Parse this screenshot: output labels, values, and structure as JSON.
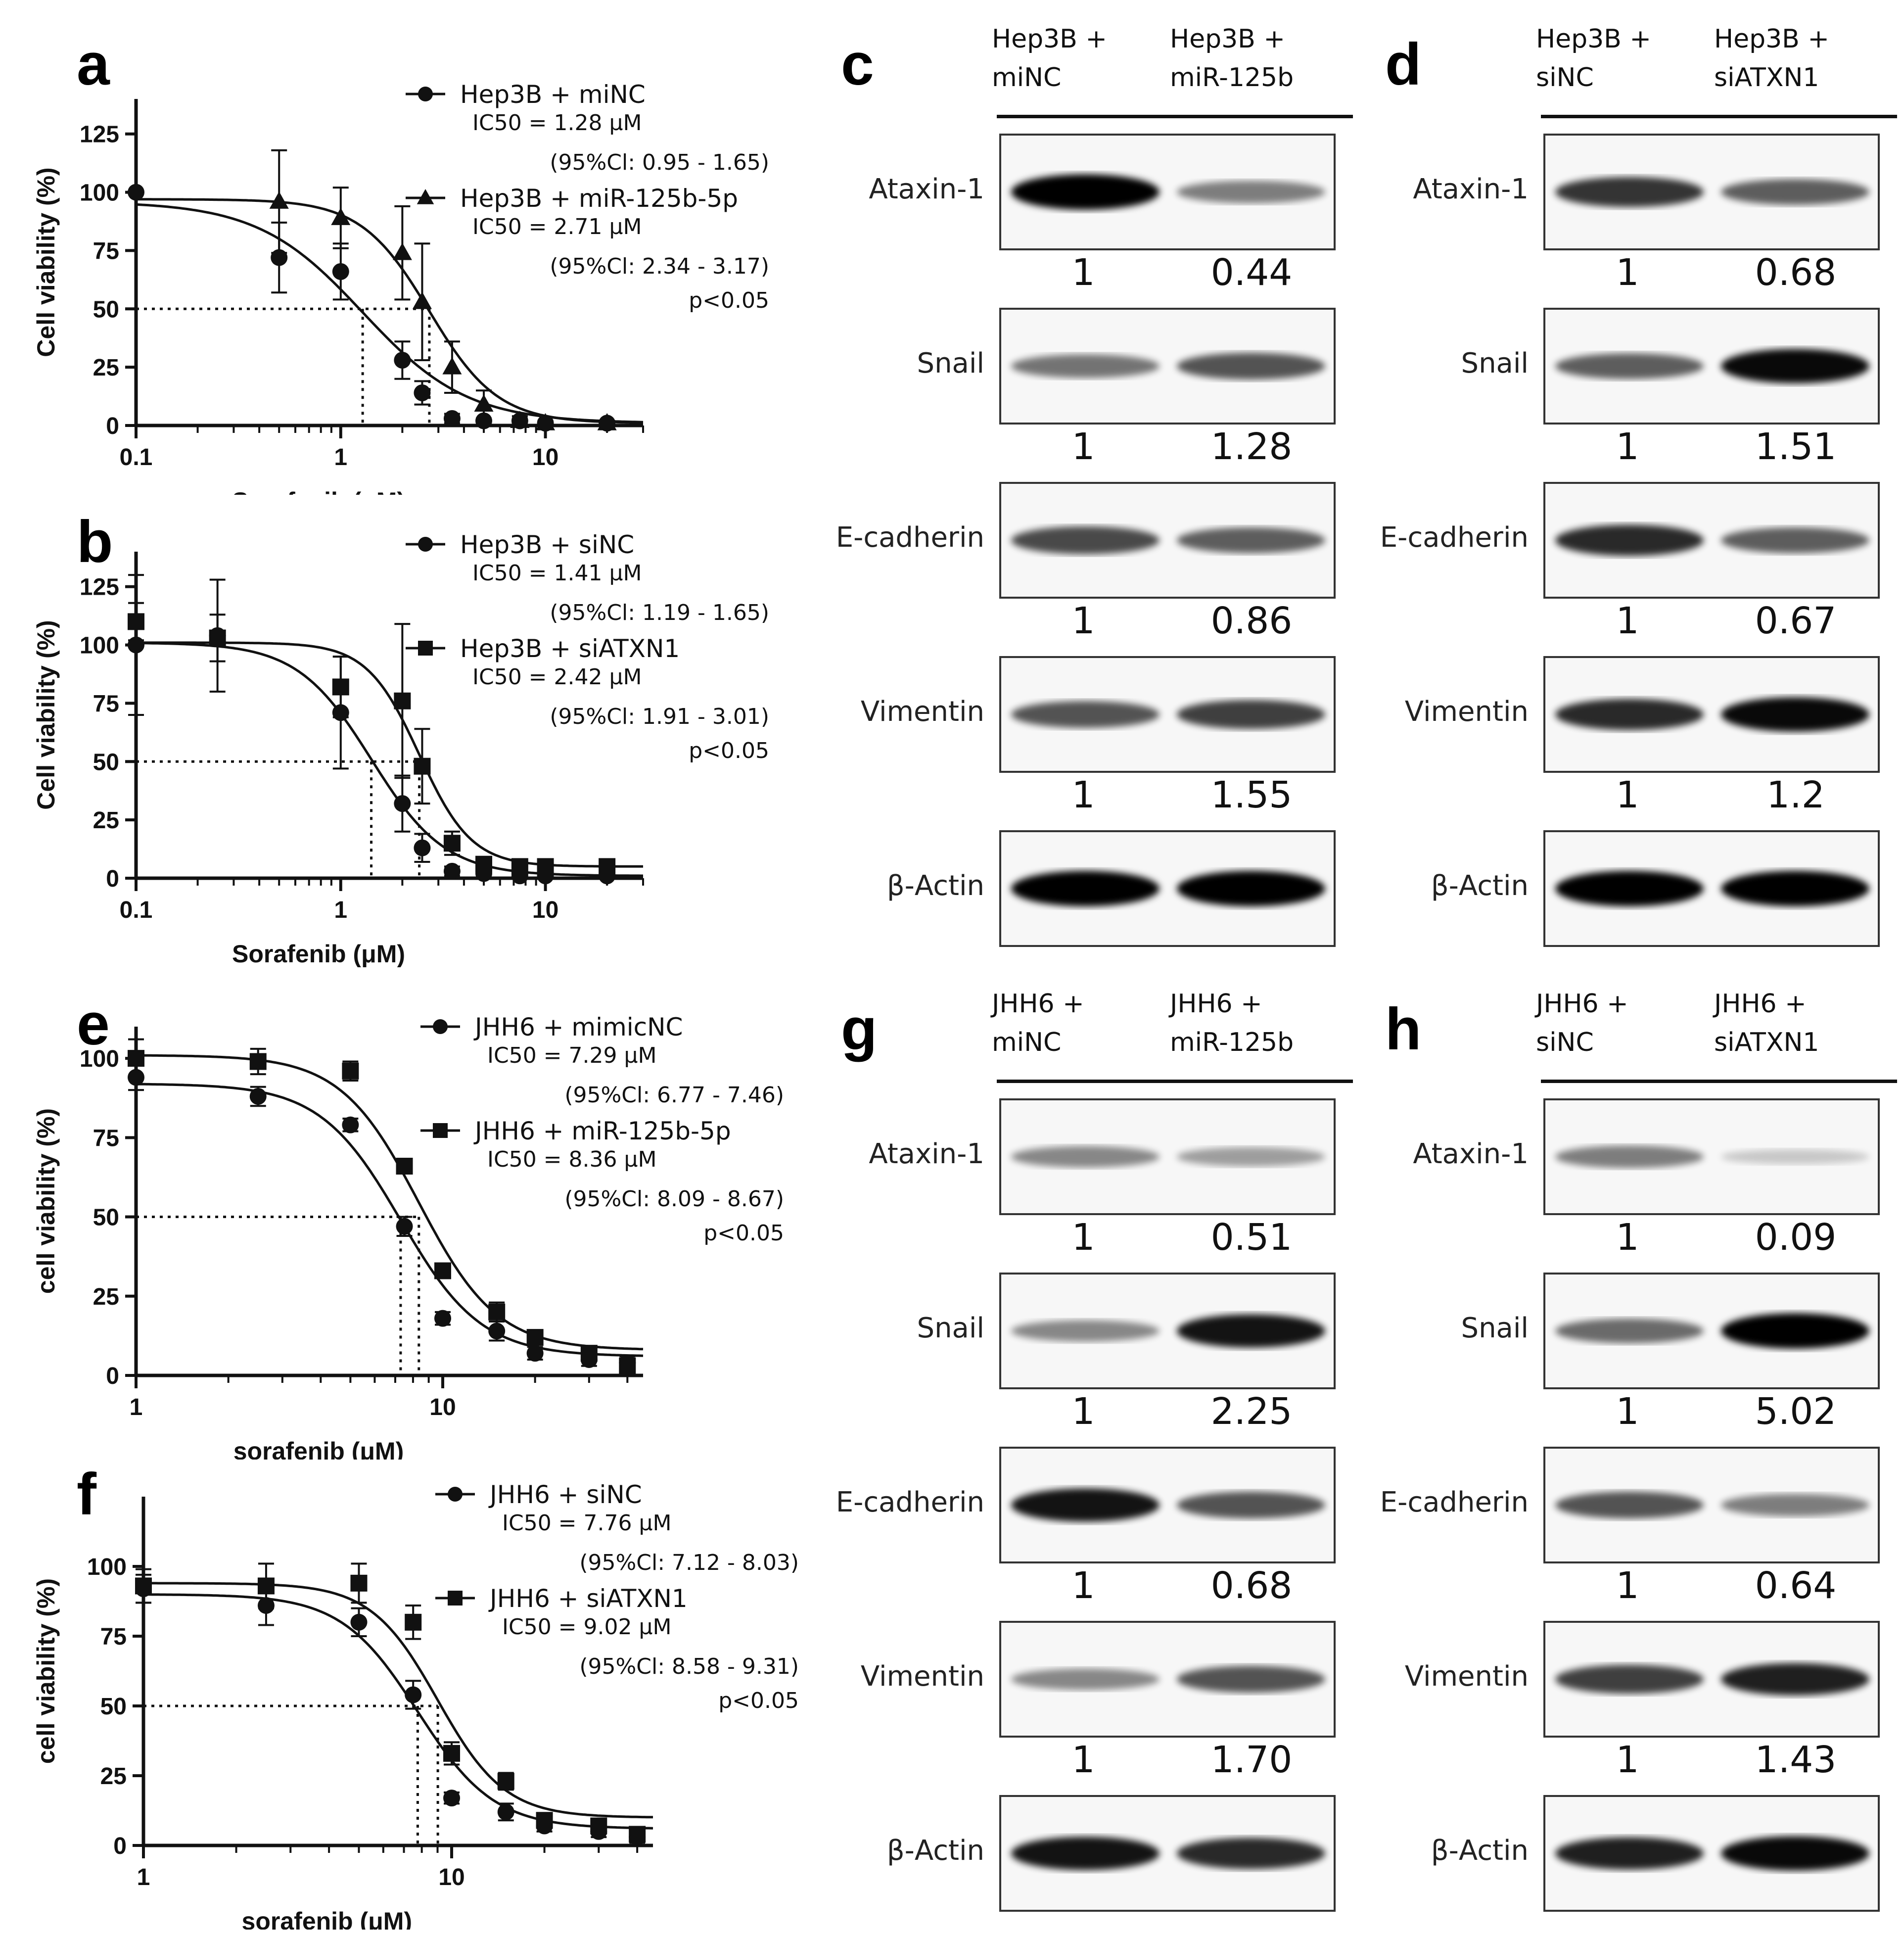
{
  "chart_data": [
    {
      "panel": "a",
      "type": "scatter",
      "xscale": "log",
      "xlim": [
        0.1,
        30
      ],
      "ylim": [
        0,
        140
      ],
      "xticks": [
        "0.1",
        "1",
        "10"
      ],
      "yticks": [
        "0",
        "25",
        "50",
        "75",
        "100",
        "125"
      ],
      "xlabel": "Sorafenib (μM)",
      "ylabel": "Cell viability (%)",
      "series": [
        {
          "name": "Hep3B + miNC",
          "marker": "circle",
          "ic50_label": "IC50 = 1.28 μM",
          "ci_label": "(95%Cl: 0.95 - 1.65)",
          "ic50": 1.28,
          "top": 96,
          "bottom": 1,
          "hill": 1.7,
          "x": [
            0.1,
            0.5,
            1,
            2,
            2.5,
            3.5,
            5,
            7.5,
            10,
            20
          ],
          "y": [
            100,
            72,
            66,
            28,
            14,
            3,
            2,
            2,
            1,
            1
          ],
          "err": [
            0,
            15,
            12,
            8,
            5,
            2,
            1,
            1,
            1,
            1
          ]
        },
        {
          "name": "Hep3B + miR-125b-5p",
          "marker": "triangle",
          "ic50_label": "IC50 = 2.71 μM",
          "ci_label": "(95%Cl: 2.34 - 3.17)",
          "ic50": 2.71,
          "top": 97,
          "bottom": 1,
          "hill": 2.6,
          "x": [
            0.5,
            1,
            2,
            2.5,
            3.5,
            5,
            7.5,
            10,
            20
          ],
          "y": [
            96,
            89,
            74,
            53,
            25,
            9,
            2,
            1,
            1
          ],
          "err": [
            22,
            13,
            20,
            25,
            11,
            6,
            2,
            1,
            1
          ]
        }
      ],
      "pvalue": "p<0.05"
    },
    {
      "panel": "b",
      "type": "scatter",
      "xscale": "log",
      "xlim": [
        0.1,
        30
      ],
      "ylim": [
        0,
        140
      ],
      "xticks": [
        "0.1",
        "1",
        "10"
      ],
      "yticks": [
        "0",
        "25",
        "50",
        "75",
        "100",
        "125"
      ],
      "xlabel": "Sorafenib (μM)",
      "ylabel": "Cell viability (%)",
      "series": [
        {
          "name": "Hep3B + siNC",
          "marker": "circle",
          "ic50_label": "IC50 = 1.41 μM",
          "ci_label": "(95%Cl: 1.19 - 1.65)",
          "ic50": 1.41,
          "top": 101,
          "bottom": 1,
          "hill": 2.4,
          "x": [
            0.1,
            0.25,
            1,
            2,
            2.5,
            3.5,
            5,
            7.5,
            10,
            20
          ],
          "y": [
            100,
            104,
            71,
            32,
            13,
            3,
            2,
            1,
            1,
            1
          ],
          "err": [
            30,
            24,
            24,
            12,
            6,
            2,
            1,
            1,
            1,
            1
          ]
        },
        {
          "name": "Hep3B + siATXN1",
          "marker": "square",
          "ic50_label": "IC50 = 2.42 μM",
          "ci_label": "(95%Cl: 1.91 - 3.01)",
          "ic50": 2.42,
          "top": 101,
          "bottom": 5,
          "hill": 3.4,
          "x": [
            0.1,
            0.25,
            1,
            2,
            2.5,
            3.5,
            5,
            7.5,
            10,
            20
          ],
          "y": [
            110,
            103,
            82,
            76,
            48,
            15,
            6,
            5,
            5,
            5
          ],
          "err": [
            8,
            10,
            13,
            33,
            16,
            5,
            3,
            2,
            2,
            2
          ]
        }
      ],
      "pvalue": "p<0.05"
    },
    {
      "panel": "e",
      "type": "scatter",
      "xscale": "log",
      "xlim": [
        1,
        45
      ],
      "ylim": [
        0,
        110
      ],
      "xticks": [
        "1",
        "10"
      ],
      "yticks": [
        "0",
        "25",
        "50",
        "75",
        "100"
      ],
      "xlabel": "sorafenib (μM)",
      "ylabel": "cell viability (%)",
      "series": [
        {
          "name": "JHH6 + mimicNC",
          "marker": "circle",
          "ic50_label": "IC50 = 7.29 μM",
          "ci_label": "(95%Cl: 6.77 - 7.46)",
          "ic50": 7.29,
          "top": 92,
          "bottom": 6,
          "hill": 3.3,
          "x": [
            1,
            2.5,
            5,
            7.5,
            10,
            15,
            20,
            30,
            40
          ],
          "y": [
            94,
            88,
            79,
            47,
            18,
            14,
            7,
            5,
            4
          ],
          "err": [
            4,
            3,
            2,
            3,
            2,
            3,
            2,
            2,
            2
          ]
        },
        {
          "name": "JHH6 + miR-125b-5p",
          "marker": "square",
          "ic50_label": "IC50 = 8.36 μM",
          "ci_label": "(95%Cl: 8.09 - 8.67)",
          "ic50": 8.36,
          "top": 101,
          "bottom": 8,
          "hill": 3.4,
          "x": [
            1,
            2.5,
            5,
            7.5,
            10,
            15,
            20,
            30,
            40
          ],
          "y": [
            100,
            99,
            96,
            66,
            33,
            20,
            12,
            7,
            3
          ],
          "err": [
            6,
            4,
            3,
            2,
            2,
            3,
            2,
            2,
            2
          ]
        }
      ],
      "pvalue": "p<0.05"
    },
    {
      "panel": "f",
      "type": "scatter",
      "xscale": "log",
      "xlim": [
        1,
        45
      ],
      "ylim": [
        0,
        125
      ],
      "xticks": [
        "1",
        "10"
      ],
      "yticks": [
        "0",
        "25",
        "50",
        "75",
        "100"
      ],
      "xlabel": "sorafenib (μM)",
      "ylabel": "cell viability (%)",
      "series": [
        {
          "name": "JHH6 + siNC",
          "marker": "circle",
          "ic50_label": "IC50 = 7.76 μM",
          "ci_label": "(95%Cl: 7.12 - 8.03)",
          "ic50": 7.76,
          "top": 90,
          "bottom": 6,
          "hill": 3.5,
          "x": [
            1,
            2.5,
            5,
            7.5,
            10,
            15,
            20,
            30,
            40
          ],
          "y": [
            92,
            86,
            80,
            54,
            17,
            12,
            7,
            5,
            3
          ],
          "err": [
            5,
            7,
            5,
            5,
            2,
            3,
            2,
            2,
            2
          ]
        },
        {
          "name": "JHH6 + siATXN1",
          "marker": "square",
          "ic50_label": "IC50 = 9.02 μM",
          "ci_label": "(95%Cl: 8.58 - 9.31)",
          "ic50": 9.02,
          "top": 94,
          "bottom": 10,
          "hill": 4.0,
          "x": [
            1,
            2.5,
            5,
            7.5,
            10,
            15,
            20,
            30,
            40
          ],
          "y": [
            93,
            93,
            94,
            80,
            33,
            23,
            9,
            7,
            4
          ],
          "err": [
            6,
            8,
            7,
            6,
            4,
            3,
            2,
            2,
            2
          ]
        }
      ],
      "pvalue": "p<0.05"
    }
  ],
  "blots": [
    {
      "panel": "c",
      "lanes": [
        "Hep3B +\nmiNC",
        "Hep3B +\nmiR-125b"
      ],
      "rows": [
        {
          "protein": "Ataxin-1",
          "quant": [
            "1",
            "0.44"
          ],
          "band": [
            1.0,
            0.4
          ]
        },
        {
          "protein": "Snail",
          "quant": [
            "1",
            "1.28"
          ],
          "band": [
            0.45,
            0.6
          ]
        },
        {
          "protein": "E-cadherin",
          "quant": [
            "1",
            "0.86"
          ],
          "band": [
            0.65,
            0.55
          ]
        },
        {
          "protein": "Vimentin",
          "quant": [
            "1",
            "1.55"
          ],
          "band": [
            0.6,
            0.7
          ]
        },
        {
          "protein": "β-Actin",
          "quant": [],
          "band": [
            1.0,
            1.0
          ]
        }
      ]
    },
    {
      "panel": "d",
      "lanes": [
        "Hep3B +\nsiNC",
        "Hep3B +\nsiATXN1"
      ],
      "rows": [
        {
          "protein": "Ataxin-1",
          "quant": [
            "1",
            "0.68"
          ],
          "band": [
            0.75,
            0.55
          ]
        },
        {
          "protein": "Snail",
          "quant": [
            "1",
            "1.51"
          ],
          "band": [
            0.55,
            0.95
          ]
        },
        {
          "protein": "E-cadherin",
          "quant": [
            "1",
            "0.67"
          ],
          "band": [
            0.8,
            0.55
          ]
        },
        {
          "protein": "Vimentin",
          "quant": [
            "1",
            "1.2"
          ],
          "band": [
            0.8,
            0.95
          ]
        },
        {
          "protein": "β-Actin",
          "quant": [],
          "band": [
            1.0,
            1.0
          ]
        }
      ]
    },
    {
      "panel": "g",
      "lanes": [
        "JHH6 +\nmiNC",
        "JHH6 +\nmiR-125b"
      ],
      "rows": [
        {
          "protein": "Ataxin-1",
          "quant": [
            "1",
            "0.51"
          ],
          "band": [
            0.35,
            0.25
          ]
        },
        {
          "protein": "Snail",
          "quant": [
            "1",
            "2.25"
          ],
          "band": [
            0.35,
            0.9
          ]
        },
        {
          "protein": "E-cadherin",
          "quant": [
            "1",
            "0.68"
          ],
          "band": [
            0.9,
            0.6
          ]
        },
        {
          "protein": "Vimentin",
          "quant": [
            "1",
            "1.70"
          ],
          "band": [
            0.35,
            0.6
          ]
        },
        {
          "protein": "β-Actin",
          "quant": [],
          "band": [
            0.9,
            0.8
          ]
        }
      ]
    },
    {
      "panel": "h",
      "lanes": [
        "JHH6 +\nsiNC",
        "JHH6 +\nsiATXN1"
      ],
      "rows": [
        {
          "protein": "Ataxin-1",
          "quant": [
            "1",
            "0.09"
          ],
          "band": [
            0.4,
            0.05
          ]
        },
        {
          "protein": "Snail",
          "quant": [
            "1",
            "5.02"
          ],
          "band": [
            0.5,
            1.0
          ]
        },
        {
          "protein": "E-cadherin",
          "quant": [
            "1",
            "0.64"
          ],
          "band": [
            0.6,
            0.4
          ]
        },
        {
          "protein": "Vimentin",
          "quant": [
            "1",
            "1.43"
          ],
          "band": [
            0.7,
            0.85
          ]
        },
        {
          "protein": "β-Actin",
          "quant": [],
          "band": [
            0.85,
            0.95
          ]
        }
      ]
    }
  ]
}
